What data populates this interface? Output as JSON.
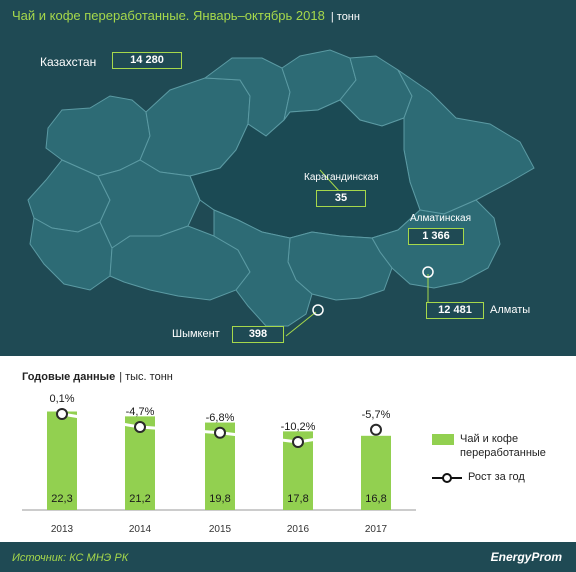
{
  "header": {
    "title": "Чай и кофе переработанные.  Январь–октябрь 2018",
    "unit": "| тонн"
  },
  "map": {
    "regions": {
      "kazakhstan": {
        "label": "Казахстан",
        "value": "14 280"
      },
      "karaganda": {
        "label": "Карагандинская",
        "value": "35"
      },
      "almaty_region": {
        "label": "Алматинская",
        "value": "1 366"
      },
      "almaty_city": {
        "label": "Алматы",
        "value": "12 481"
      },
      "shymkent": {
        "label": "Шымкент",
        "value": "398"
      }
    }
  },
  "chart": {
    "title": "Годовые данные",
    "unit": "| тыс. тонн"
  },
  "legend": {
    "bars_label_line1": "Чай и кофе",
    "bars_label_line2": "переработанные",
    "line_label": "Рост за год"
  },
  "footer": {
    "source": "Источник: КС МНЭ РК",
    "brand": "EnergyProm"
  },
  "colors": {
    "panel": "#1f4a54",
    "region": "#2d6b75",
    "region_highlight": "#1b4a54",
    "region_border": "#5b9aa3",
    "accent": "#a6d84b",
    "bar": "#92d050",
    "line": "#ffffff"
  },
  "chart_data": {
    "type": "bar",
    "categories": [
      "2013",
      "2014",
      "2015",
      "2016",
      "2017"
    ],
    "series": [
      {
        "name": "Чай и кофе переработанные",
        "values": [
          22.3,
          21.2,
          19.8,
          17.8,
          16.8
        ],
        "labels": [
          "22,3",
          "21,2",
          "19,8",
          "17,8",
          "16,8"
        ]
      },
      {
        "name": "Рост за год",
        "type": "line",
        "values": [
          0.1,
          -4.7,
          -6.8,
          -10.2,
          -5.7
        ],
        "labels": [
          "0,1%",
          "-4,7%",
          "-6,8%",
          "-10,2%",
          "-5,7%"
        ]
      }
    ],
    "title": "Годовые данные",
    "ylabel": "тыс. тонн",
    "grid": false,
    "legend_position": "right"
  }
}
